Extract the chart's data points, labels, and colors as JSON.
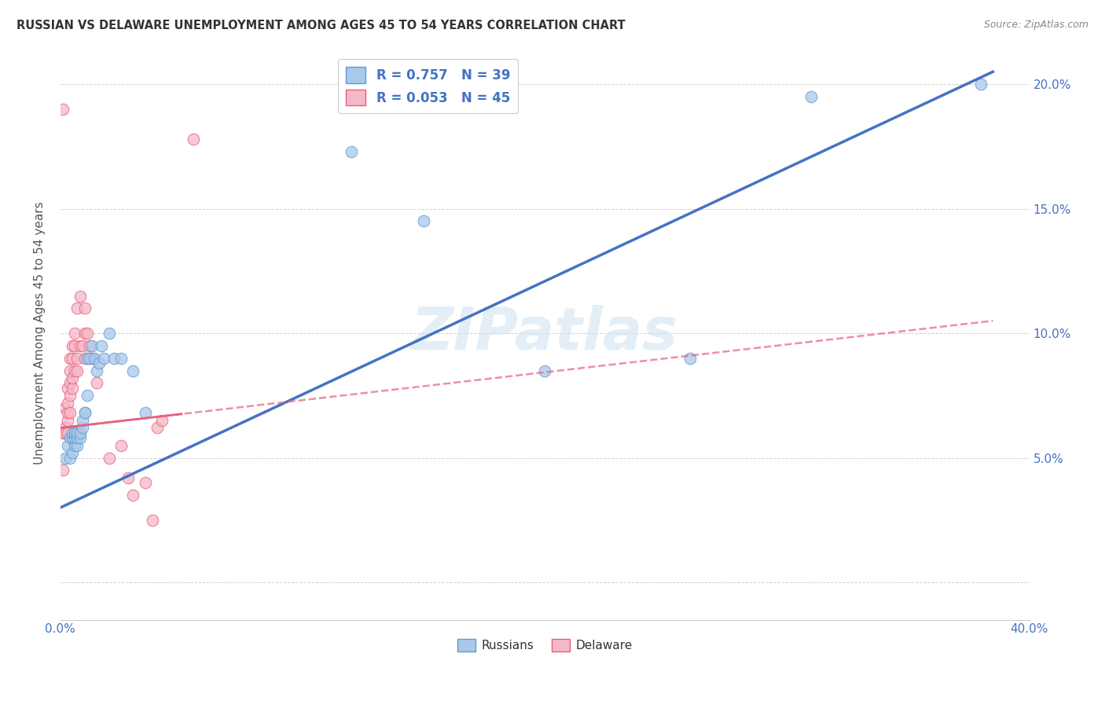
{
  "title": "RUSSIAN VS DELAWARE UNEMPLOYMENT AMONG AGES 45 TO 54 YEARS CORRELATION CHART",
  "source": "Source: ZipAtlas.com",
  "ylabel": "Unemployment Among Ages 45 to 54 years",
  "xlim": [
    0.0,
    0.4
  ],
  "ylim": [
    -0.015,
    0.215
  ],
  "russians_color": "#aac8e8",
  "delaware_color": "#f5b8c8",
  "russians_edge_color": "#5b9bd5",
  "delaware_edge_color": "#e8607a",
  "trendline_russian_color": "#4472c4",
  "trendline_delaware_color": "#e8607a",
  "legend_text_color": "#4472c4",
  "watermark": "ZIPatlas",
  "R_russian": 0.757,
  "N_russian": 39,
  "R_delaware": 0.053,
  "N_delaware": 45,
  "russians_x": [
    0.002,
    0.003,
    0.004,
    0.004,
    0.005,
    0.005,
    0.005,
    0.006,
    0.006,
    0.006,
    0.007,
    0.007,
    0.007,
    0.008,
    0.008,
    0.009,
    0.009,
    0.01,
    0.01,
    0.011,
    0.011,
    0.012,
    0.013,
    0.014,
    0.015,
    0.016,
    0.017,
    0.018,
    0.02,
    0.022,
    0.025,
    0.03,
    0.035,
    0.12,
    0.15,
    0.2,
    0.26,
    0.31,
    0.38
  ],
  "russians_y": [
    0.05,
    0.055,
    0.05,
    0.058,
    0.052,
    0.058,
    0.06,
    0.055,
    0.058,
    0.06,
    0.055,
    0.058,
    0.06,
    0.058,
    0.06,
    0.062,
    0.065,
    0.068,
    0.068,
    0.075,
    0.09,
    0.09,
    0.095,
    0.09,
    0.085,
    0.088,
    0.095,
    0.09,
    0.1,
    0.09,
    0.09,
    0.085,
    0.068,
    0.173,
    0.145,
    0.085,
    0.09,
    0.195,
    0.2
  ],
  "delaware_x": [
    0.001,
    0.001,
    0.001,
    0.002,
    0.002,
    0.002,
    0.003,
    0.003,
    0.003,
    0.003,
    0.003,
    0.004,
    0.004,
    0.004,
    0.004,
    0.004,
    0.005,
    0.005,
    0.005,
    0.005,
    0.006,
    0.006,
    0.006,
    0.007,
    0.007,
    0.007,
    0.008,
    0.008,
    0.009,
    0.01,
    0.01,
    0.01,
    0.011,
    0.012,
    0.013,
    0.015,
    0.02,
    0.025,
    0.028,
    0.03,
    0.035,
    0.038,
    0.04,
    0.042,
    0.055
  ],
  "delaware_y": [
    0.19,
    0.06,
    0.045,
    0.062,
    0.06,
    0.07,
    0.065,
    0.06,
    0.068,
    0.072,
    0.078,
    0.068,
    0.075,
    0.08,
    0.085,
    0.09,
    0.078,
    0.082,
    0.09,
    0.095,
    0.085,
    0.095,
    0.1,
    0.085,
    0.09,
    0.11,
    0.095,
    0.115,
    0.095,
    0.1,
    0.09,
    0.11,
    0.1,
    0.095,
    0.09,
    0.08,
    0.05,
    0.055,
    0.042,
    0.035,
    0.04,
    0.025,
    0.062,
    0.065,
    0.178
  ],
  "trendline_russian_x0": 0.0,
  "trendline_russian_y0": 0.03,
  "trendline_russian_x1": 0.385,
  "trendline_russian_y1": 0.205,
  "trendline_delaware_x0": 0.0,
  "trendline_delaware_y0": 0.062,
  "trendline_delaware_x1": 0.385,
  "trendline_delaware_y1": 0.105
}
